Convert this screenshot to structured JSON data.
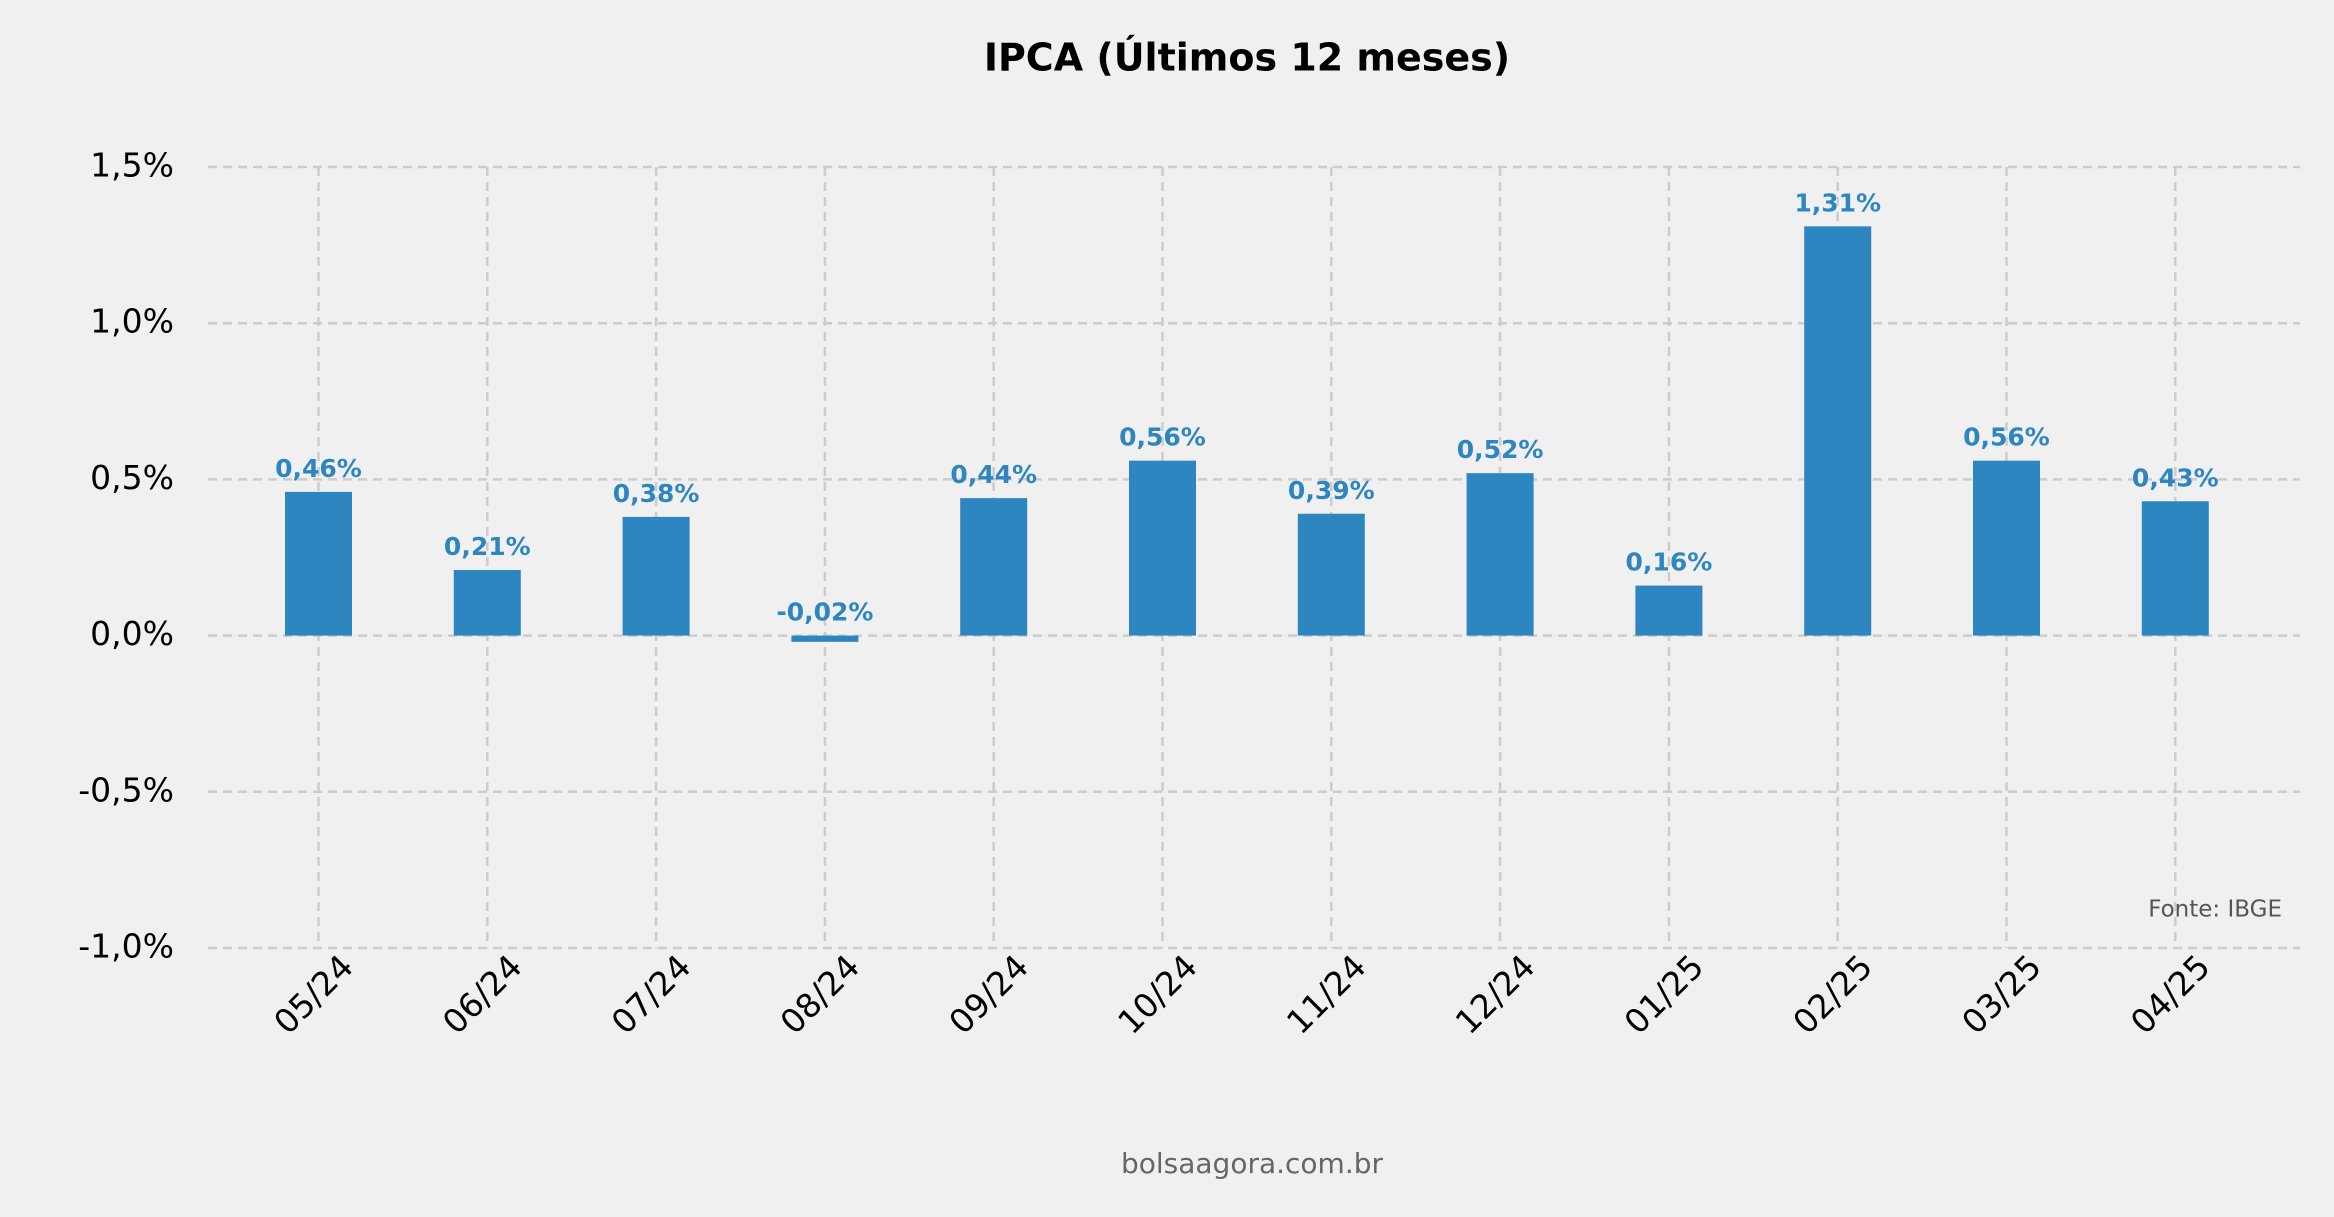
{
  "chart_data": {
    "type": "bar",
    "title": "IPCA (Últimos 12 meses)",
    "categories": [
      "05/24",
      "06/24",
      "07/24",
      "08/24",
      "09/24",
      "10/24",
      "11/24",
      "12/24",
      "01/25",
      "02/25",
      "03/25",
      "04/25"
    ],
    "values": [
      0.46,
      0.21,
      0.38,
      -0.02,
      0.44,
      0.56,
      0.39,
      0.52,
      0.16,
      1.31,
      0.56,
      0.43
    ],
    "value_labels": [
      "0,46%",
      "0,21%",
      "0,38%",
      "-0,02%",
      "0,44%",
      "0,56%",
      "0,39%",
      "0,52%",
      "0,16%",
      "1,31%",
      "0,56%",
      "0,43%"
    ],
    "color": "#2e86c1",
    "ylim": [
      -1.0,
      1.5
    ],
    "yticks": [
      {
        "value": -1.0,
        "label": "-1,0%"
      },
      {
        "value": -0.5,
        "label": "-0,5%"
      },
      {
        "value": 0,
        "label": "0,0%"
      },
      {
        "value": 0.5,
        "label": "0,5%"
      },
      {
        "value": 1.0,
        "label": "1,0%"
      },
      {
        "value": 1.5,
        "label": "1,5%"
      }
    ],
    "grid": true,
    "source": "Fonte: IBGE",
    "footer": "bolsaagora.com.br"
  }
}
